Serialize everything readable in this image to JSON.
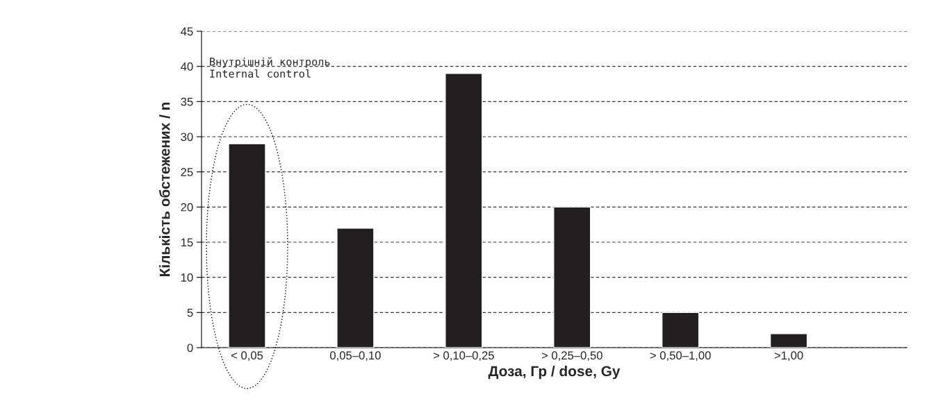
{
  "chart_data": {
    "type": "bar",
    "xlabel": "Доза, Гр / dose, Gy",
    "ylabel": "Кількість обстежених / n",
    "categories": [
      "< 0,05",
      "0,05–0,10",
      "> 0,10–0,25",
      "> 0,25–0,50",
      "> 0,50–1,00",
      ">1,00"
    ],
    "values": [
      29,
      17,
      39,
      20,
      5,
      2
    ],
    "color": "#231f20",
    "ylim": [
      0,
      45
    ],
    "yticks": [
      0,
      5,
      10,
      15,
      20,
      25,
      30,
      35,
      40,
      45
    ],
    "grid": "y",
    "annotations": [
      "Внутрішній контроль\nInternal control"
    ]
  }
}
